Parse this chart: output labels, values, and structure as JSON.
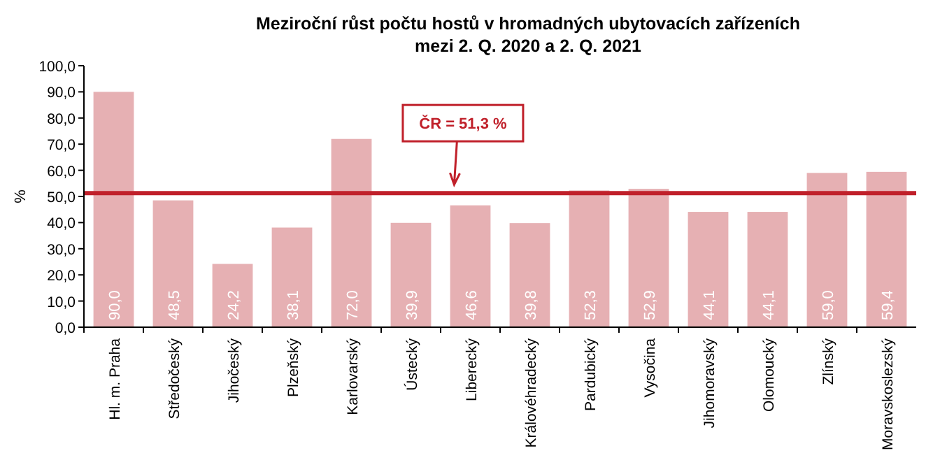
{
  "chart_data": {
    "type": "bar",
    "title": "Meziroční růst počtu hostů  v hromadných ubytovacích zařízeních\nmezi 2. Q. 2020 a 2. Q. 2021",
    "ylabel": "%",
    "categories": [
      "Hl. m. Praha",
      "Středočeský",
      "Jihočeský",
      "Plzeňský",
      "Karlovarský",
      "Ústecký",
      "Liberecký",
      "Královéhradecký",
      "Pardubický",
      "Vysočina",
      "Jihomoravský",
      "Olomoucký",
      "Zlínský",
      "Moravskoslezský"
    ],
    "values": [
      90.0,
      48.5,
      24.2,
      38.1,
      72.0,
      39.9,
      46.6,
      39.8,
      52.3,
      52.9,
      44.1,
      44.1,
      59.0,
      59.4
    ],
    "value_labels": [
      "90,0",
      "48,5",
      "24,2",
      "38,1",
      "72,0",
      "39,9",
      "46,6",
      "39,8",
      "52,3",
      "52,9",
      "44,1",
      "44,1",
      "59,0",
      "59,4"
    ],
    "color": "#e6b0b3",
    "ylim": [
      0,
      100
    ],
    "yticks": [
      {
        "value": 0,
        "label": "0,0"
      },
      {
        "value": 10,
        "label": "10,0"
      },
      {
        "value": 20,
        "label": "20,0"
      },
      {
        "value": 30,
        "label": "30,0"
      },
      {
        "value": 40,
        "label": "40,0"
      },
      {
        "value": 50,
        "label": "50,0"
      },
      {
        "value": 60,
        "label": "60,0"
      },
      {
        "value": 70,
        "label": "70,0"
      },
      {
        "value": 80,
        "label": "80,0"
      },
      {
        "value": 90,
        "label": "90,0"
      },
      {
        "value": 100,
        "label": "100,0"
      }
    ],
    "ref_lines": [
      {
        "axis": "y",
        "value": 51.3,
        "label": "ČR = 51,3 %",
        "color": "#c0202a"
      }
    ],
    "grid": false
  }
}
